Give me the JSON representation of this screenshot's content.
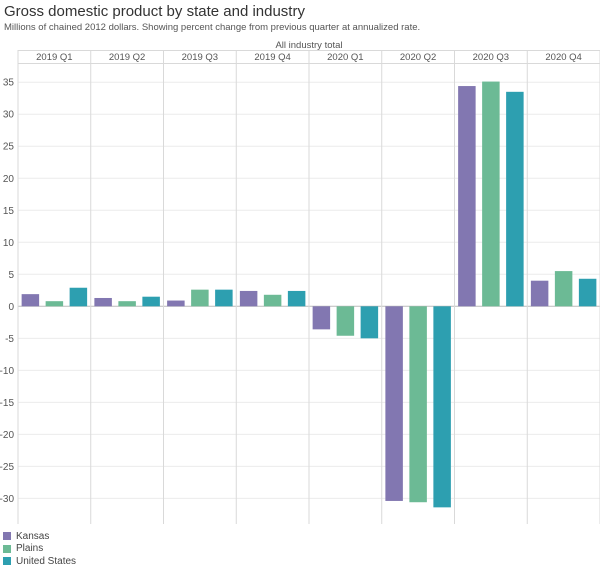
{
  "title": "Gross domestic product by state and industry",
  "subtitle": "Millions of chained 2012 dollars. Showing percent change from previous quarter at annualized rate.",
  "chart_data": {
    "type": "bar",
    "panel_title": "All industry total",
    "categories": [
      "2019 Q1",
      "2019 Q2",
      "2019 Q3",
      "2019 Q4",
      "2020 Q1",
      "2020 Q2",
      "2020 Q3",
      "2020 Q4"
    ],
    "series": [
      {
        "name": "Kansas",
        "color": "#8277b1",
        "values": [
          1.9,
          1.3,
          0.9,
          2.4,
          -3.6,
          -30.4,
          34.4,
          4.0
        ]
      },
      {
        "name": "Plains",
        "color": "#6cba95",
        "values": [
          0.8,
          0.8,
          2.6,
          1.8,
          -4.6,
          -30.6,
          35.1,
          5.5
        ]
      },
      {
        "name": "United States",
        "color": "#2d9fb0",
        "values": [
          2.9,
          1.5,
          2.6,
          2.4,
          -5.0,
          -31.4,
          33.5,
          4.3
        ]
      }
    ],
    "ylim": [
      -34,
      38
    ],
    "yticks": [
      35,
      30,
      25,
      20,
      15,
      10,
      5,
      0,
      -5,
      -10,
      -15,
      -20,
      -25,
      -30
    ],
    "legend_position": "bottom-left",
    "grid": true
  }
}
